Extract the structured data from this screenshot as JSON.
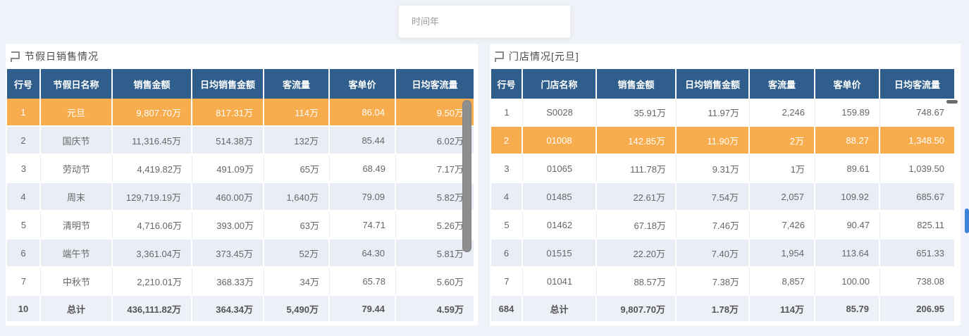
{
  "search": {
    "placeholder": "时间年"
  },
  "colors": {
    "page_bg": "#eff2f8",
    "header_bg": "#2f5e8c",
    "selected_row_bg": "#f7ac4d",
    "alt_row_bg": "#e9eef6",
    "footer_row_bg": "#edf0f7",
    "left_scrollbar": "#8f8f8f",
    "page_scrollbar": "#3b82d9"
  },
  "panels": [
    {
      "title": "节假日销售情况",
      "columns": [
        "行号",
        "节假日名称",
        "销售金额",
        "日均销售金额",
        "客流量",
        "客单价",
        "日均客流量"
      ],
      "rows": [
        [
          "1",
          "元旦",
          "9,807.70万",
          "817.31万",
          "114万",
          "86.04",
          "9.50万"
        ],
        [
          "2",
          "国庆节",
          "11,316.45万",
          "514.38万",
          "132万",
          "85.44",
          "6.02万"
        ],
        [
          "3",
          "劳动节",
          "4,419.82万",
          "491.09万",
          "65万",
          "68.49",
          "7.17万"
        ],
        [
          "4",
          "周末",
          "129,719.19万",
          "460.00万",
          "1,640万",
          "79.09",
          "5.82万"
        ],
        [
          "5",
          "清明节",
          "4,716.06万",
          "393.00万",
          "63万",
          "74.71",
          "5.26万"
        ],
        [
          "6",
          "端午节",
          "3,361.04万",
          "373.45万",
          "52万",
          "64.30",
          "5.81万"
        ],
        [
          "7",
          "中秋节",
          "2,210.01万",
          "368.33万",
          "34万",
          "65.78",
          "5.60万"
        ]
      ],
      "footer": [
        "10",
        "总计",
        "436,111.82万",
        "364.34万",
        "5,490万",
        "79.44",
        "4.59万"
      ],
      "selected_row_index": 0
    },
    {
      "title": "门店情况[元旦]",
      "columns": [
        "行号",
        "门店名称",
        "销售金额",
        "日均销售金额",
        "客流量",
        "客单价",
        "日均客流量"
      ],
      "rows": [
        [
          "1",
          "S0028",
          "35.91万",
          "11.97万",
          "2,246",
          "159.89",
          "748.67"
        ],
        [
          "2",
          "01008",
          "142.85万",
          "11.90万",
          "2万",
          "88.27",
          "1,348.50"
        ],
        [
          "3",
          "01065",
          "111.78万",
          "9.31万",
          "1万",
          "89.61",
          "1,039.50"
        ],
        [
          "4",
          "01485",
          "22.61万",
          "7.54万",
          "2,057",
          "109.92",
          "685.67"
        ],
        [
          "5",
          "01462",
          "67.18万",
          "7.46万",
          "7,426",
          "90.47",
          "825.11"
        ],
        [
          "6",
          "01515",
          "22.20万",
          "7.40万",
          "1,954",
          "113.64",
          "651.33"
        ],
        [
          "7",
          "01041",
          "88.57万",
          "7.38万",
          "8,857",
          "100.00",
          "738.08"
        ]
      ],
      "footer": [
        "684",
        "总计",
        "9,807.70万",
        "1.78万",
        "114万",
        "85.79",
        "206.95"
      ],
      "selected_row_index": 1
    }
  ]
}
